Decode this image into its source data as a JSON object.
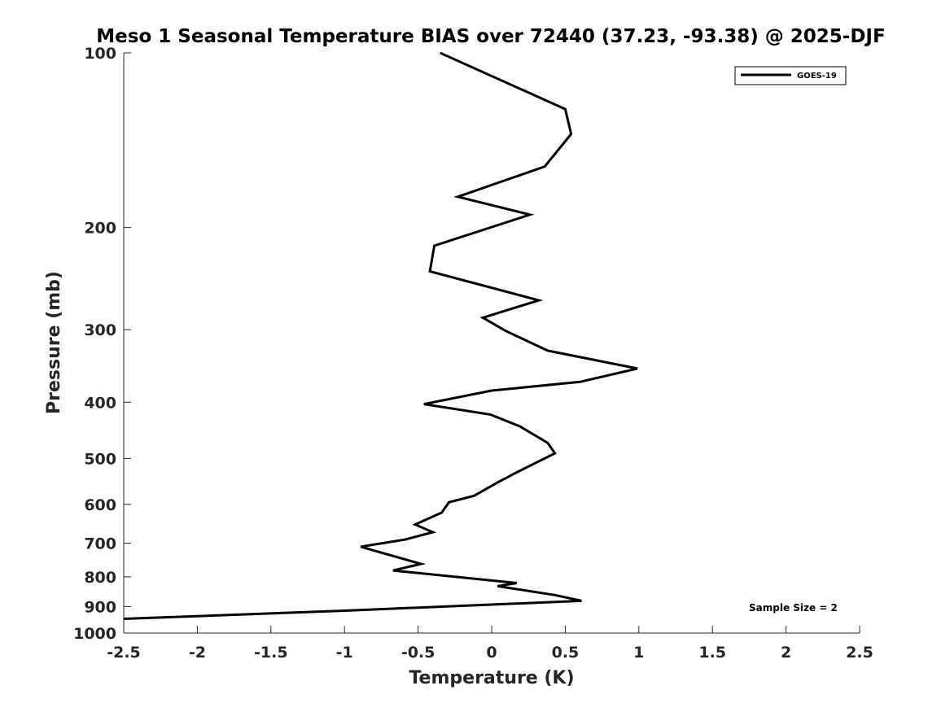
{
  "chart_data": {
    "type": "line",
    "title": "Meso 1 Seasonal Temperature BIAS over 72440 (37.23, -93.38) @ 2025-DJF",
    "xlabel": "Temperature (K)",
    "ylabel": "Pressure (mb)",
    "xlim": [
      -2.5,
      2.5
    ],
    "ylim": [
      100,
      1000
    ],
    "yscale": "log",
    "yreversed": true,
    "xticks": [
      "-2.5",
      "-2",
      "-1.5",
      "-1",
      "-0.5",
      "0",
      "0.5",
      "1",
      "1.5",
      "2",
      "2.5"
    ],
    "yticks": [
      "100",
      "200",
      "300",
      "400",
      "500",
      "600",
      "700",
      "800",
      "900",
      "1000"
    ],
    "grid": false,
    "legend": {
      "position": "top-right",
      "entries": [
        "GOES-19"
      ]
    },
    "annotation": "Sample Size = 2",
    "series": [
      {
        "name": "GOES-19",
        "color": "#000000",
        "points": [
          [
            -0.35,
            100
          ],
          [
            0.5,
            125
          ],
          [
            0.54,
            138
          ],
          [
            0.36,
            157
          ],
          [
            -0.23,
            177
          ],
          [
            0.26,
            190
          ],
          [
            -0.39,
            215
          ],
          [
            -0.42,
            238
          ],
          [
            0.32,
            267
          ],
          [
            -0.06,
            286
          ],
          [
            0.09,
            301
          ],
          [
            0.38,
            326
          ],
          [
            0.99,
            350
          ],
          [
            0.6,
            369
          ],
          [
            0.0,
            382
          ],
          [
            -0.46,
            403
          ],
          [
            -0.01,
            420
          ],
          [
            0.19,
            440
          ],
          [
            0.38,
            470
          ],
          [
            0.43,
            490
          ],
          [
            0.16,
            530
          ],
          [
            0.04,
            550
          ],
          [
            -0.12,
            580
          ],
          [
            -0.29,
            595
          ],
          [
            -0.34,
            620
          ],
          [
            -0.52,
            650
          ],
          [
            -0.4,
            670
          ],
          [
            -0.59,
            690
          ],
          [
            -0.89,
            710
          ],
          [
            -0.48,
            760
          ],
          [
            -0.67,
            780
          ],
          [
            0.17,
            820
          ],
          [
            0.04,
            830
          ],
          [
            0.43,
            860
          ],
          [
            0.61,
            880
          ],
          [
            -1.0,
            915
          ],
          [
            -2.5,
            945
          ]
        ]
      }
    ]
  }
}
